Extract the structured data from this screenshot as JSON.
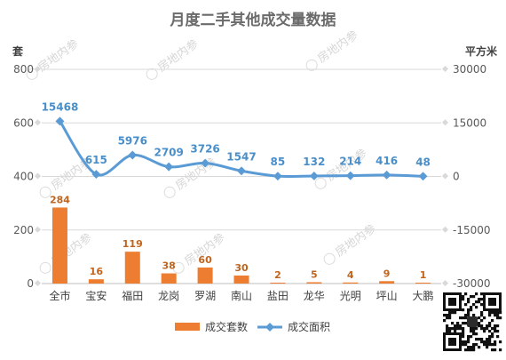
{
  "chart_data": {
    "type": "bar",
    "title": "月度二手其他成交量数据",
    "y_left_unit": "套",
    "y_right_unit": "平方米",
    "categories": [
      "全市",
      "宝安",
      "福田",
      "龙岗",
      "罗湖",
      "南山",
      "盐田",
      "龙华",
      "光明",
      "坪山",
      "大鹏"
    ],
    "series": [
      {
        "name": "成交套数",
        "type": "bar",
        "axis": "left",
        "color": "#ed7d31",
        "values": [
          284,
          16,
          119,
          38,
          60,
          30,
          2,
          5,
          4,
          9,
          1
        ]
      },
      {
        "name": "成交面积",
        "type": "line",
        "axis": "right",
        "color": "#5b9bd5",
        "values": [
          15468,
          615,
          5976,
          2709,
          3726,
          1547,
          85,
          132,
          214,
          416,
          48
        ]
      }
    ],
    "y_left": {
      "min": 0,
      "max": 800,
      "ticks": [
        0,
        200,
        400,
        600,
        800
      ]
    },
    "y_right": {
      "min": -30000,
      "max": 30000,
      "ticks": [
        -30000,
        -15000,
        0,
        15000,
        30000
      ]
    },
    "grid": true,
    "legend_position": "bottom"
  },
  "watermark": "房地内参"
}
